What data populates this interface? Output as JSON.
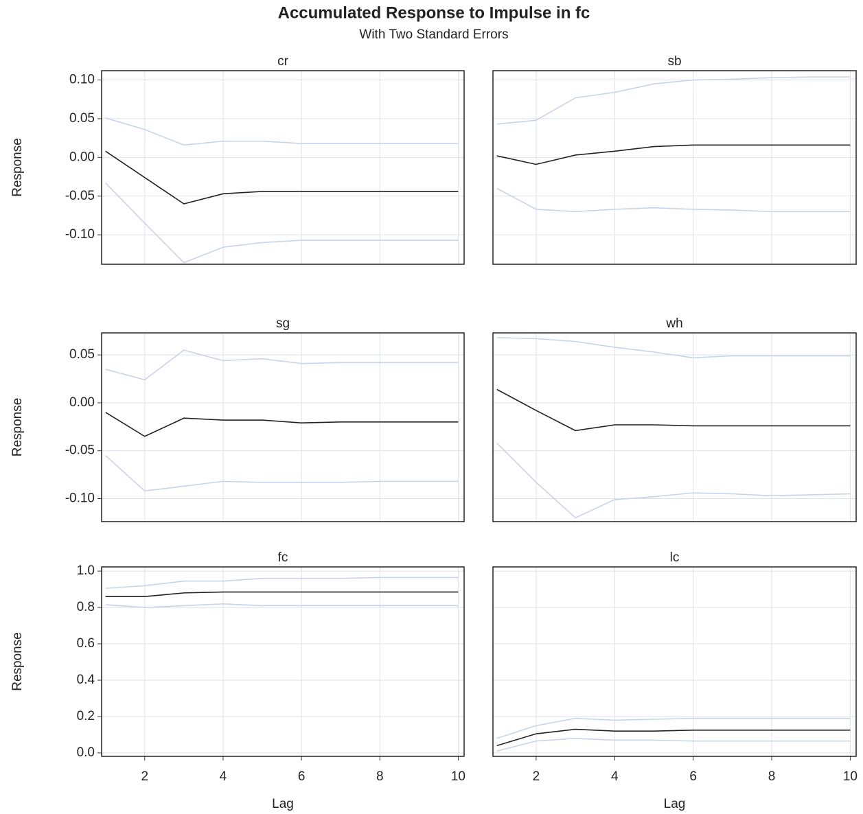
{
  "title": "Accumulated Response to Impulse in fc",
  "subtitle": "With Two Standard Errors",
  "chart_data": [
    {
      "type": "line",
      "title": "cr",
      "ylabel": "Response",
      "grid": true,
      "show_xtick_labels": false,
      "show_ytick_labels": true,
      "x": [
        1,
        2,
        3,
        4,
        5,
        6,
        7,
        8,
        9,
        10
      ],
      "xlim": [
        0.9,
        10.15
      ],
      "xticks": [
        2,
        4,
        6,
        8,
        10
      ],
      "ylim": [
        -0.138,
        0.112
      ],
      "yticks": [
        {
          "value": 0.1,
          "label": "0.10"
        },
        {
          "value": 0.05,
          "label": "0.05"
        },
        {
          "value": 0,
          "label": "0.00"
        },
        {
          "value": -0.05,
          "label": "-0.05"
        },
        {
          "value": -0.1,
          "label": "-0.10"
        }
      ],
      "series": [
        {
          "color": "#c9d3e8",
          "values": [
            0.051,
            0.036,
            0.016,
            0.021,
            0.021,
            0.018,
            0.018,
            0.018,
            0.018,
            0.018
          ]
        },
        {
          "color": "#222222",
          "values": [
            0.008,
            -0.026,
            -0.06,
            -0.047,
            -0.044,
            -0.044,
            -0.044,
            -0.044,
            -0.044,
            -0.044
          ]
        },
        {
          "color": "#c9d3e8",
          "values": [
            -0.033,
            -0.085,
            -0.136,
            -0.116,
            -0.11,
            -0.107,
            -0.107,
            -0.107,
            -0.107,
            -0.107
          ]
        }
      ]
    },
    {
      "type": "line",
      "title": "sb",
      "grid": true,
      "show_xtick_labels": false,
      "show_ytick_labels": false,
      "x": [
        1,
        2,
        3,
        4,
        5,
        6,
        7,
        8,
        9,
        10
      ],
      "xlim": [
        0.9,
        10.15
      ],
      "xticks": [
        2,
        4,
        6,
        8,
        10
      ],
      "ylim": [
        -0.138,
        0.112
      ],
      "yticks": [
        0.1,
        0.05,
        0,
        -0.05,
        -0.1
      ],
      "series": [
        {
          "color": "#c9d3e8",
          "values": [
            0.043,
            0.048,
            0.077,
            0.084,
            0.095,
            0.1,
            0.101,
            0.103,
            0.104,
            0.104
          ]
        },
        {
          "color": "#222222",
          "values": [
            0.002,
            -0.009,
            0.003,
            0.008,
            0.014,
            0.016,
            0.016,
            0.016,
            0.016,
            0.016
          ]
        },
        {
          "color": "#c9d3e8",
          "values": [
            -0.04,
            -0.067,
            -0.07,
            -0.067,
            -0.065,
            -0.067,
            -0.068,
            -0.07,
            -0.07,
            -0.07
          ]
        }
      ]
    },
    {
      "type": "line",
      "title": "sg",
      "ylabel": "Response",
      "grid": true,
      "show_xtick_labels": false,
      "show_ytick_labels": true,
      "x": [
        1,
        2,
        3,
        4,
        5,
        6,
        7,
        8,
        9,
        10
      ],
      "xlim": [
        0.9,
        10.15
      ],
      "xticks": [
        2,
        4,
        6,
        8,
        10
      ],
      "ylim": [
        -0.124,
        0.073
      ],
      "yticks": [
        {
          "value": 0.05,
          "label": "0.05"
        },
        {
          "value": 0,
          "label": "0.00"
        },
        {
          "value": -0.05,
          "label": "-0.05"
        },
        {
          "value": -0.1,
          "label": "-0.10"
        }
      ],
      "series": [
        {
          "color": "#c9d3e8",
          "values": [
            0.035,
            0.024,
            0.055,
            0.044,
            0.046,
            0.041,
            0.042,
            0.042,
            0.042,
            0.042
          ]
        },
        {
          "color": "#222222",
          "values": [
            -0.01,
            -0.035,
            -0.016,
            -0.018,
            -0.018,
            -0.021,
            -0.02,
            -0.02,
            -0.02,
            -0.02
          ]
        },
        {
          "color": "#c9d3e8",
          "values": [
            -0.055,
            -0.092,
            -0.087,
            -0.082,
            -0.083,
            -0.083,
            -0.083,
            -0.082,
            -0.082,
            -0.082
          ]
        }
      ]
    },
    {
      "type": "line",
      "title": "wh",
      "grid": true,
      "show_xtick_labels": false,
      "show_ytick_labels": false,
      "x": [
        1,
        2,
        3,
        4,
        5,
        6,
        7,
        8,
        9,
        10
      ],
      "xlim": [
        0.9,
        10.15
      ],
      "xticks": [
        2,
        4,
        6,
        8,
        10
      ],
      "ylim": [
        -0.124,
        0.073
      ],
      "yticks": [
        0.05,
        0,
        -0.05,
        -0.1
      ],
      "series": [
        {
          "color": "#c9d3e8",
          "values": [
            0.068,
            0.067,
            0.064,
            0.058,
            0.053,
            0.047,
            0.049,
            0.049,
            0.049,
            0.049
          ]
        },
        {
          "color": "#222222",
          "values": [
            0.014,
            -0.008,
            -0.029,
            -0.023,
            -0.023,
            -0.024,
            -0.024,
            -0.024,
            -0.024,
            -0.024
          ]
        },
        {
          "color": "#c9d3e8",
          "values": [
            -0.042,
            -0.083,
            -0.12,
            -0.101,
            -0.098,
            -0.094,
            -0.095,
            -0.097,
            -0.096,
            -0.095
          ]
        }
      ]
    },
    {
      "type": "line",
      "title": "fc",
      "ylabel": "Response",
      "xlabel": "Lag",
      "grid": true,
      "show_xtick_labels": true,
      "show_ytick_labels": true,
      "x": [
        1,
        2,
        3,
        4,
        5,
        6,
        7,
        8,
        9,
        10
      ],
      "xlim": [
        0.9,
        10.15
      ],
      "xticks": [
        2,
        4,
        6,
        8,
        10
      ],
      "ylim": [
        -0.019,
        1.023
      ],
      "yticks": [
        {
          "value": 1.0,
          "label": "1.0"
        },
        {
          "value": 0.8,
          "label": "0.8"
        },
        {
          "value": 0.6,
          "label": "0.6"
        },
        {
          "value": 0.4,
          "label": "0.4"
        },
        {
          "value": 0.2,
          "label": "0.2"
        },
        {
          "value": 0,
          "label": "0.0"
        }
      ],
      "series": [
        {
          "color": "#c9d3e8",
          "values": [
            0.905,
            0.92,
            0.945,
            0.945,
            0.96,
            0.96,
            0.96,
            0.965,
            0.965,
            0.965
          ]
        },
        {
          "color": "#222222",
          "values": [
            0.86,
            0.86,
            0.88,
            0.885,
            0.885,
            0.885,
            0.885,
            0.885,
            0.885,
            0.885
          ]
        },
        {
          "color": "#c9d3e8",
          "values": [
            0.815,
            0.8,
            0.81,
            0.82,
            0.81,
            0.81,
            0.81,
            0.81,
            0.81,
            0.81
          ]
        }
      ]
    },
    {
      "type": "line",
      "title": "lc",
      "xlabel": "Lag",
      "grid": true,
      "show_xtick_labels": true,
      "show_ytick_labels": false,
      "x": [
        1,
        2,
        3,
        4,
        5,
        6,
        7,
        8,
        9,
        10
      ],
      "xlim": [
        0.9,
        10.15
      ],
      "xticks": [
        2,
        4,
        6,
        8,
        10
      ],
      "ylim": [
        -0.019,
        1.023
      ],
      "yticks": [
        1,
        0.8,
        0.6,
        0.4,
        0.2,
        0
      ],
      "series": [
        {
          "color": "#c9d3e8",
          "values": [
            0.08,
            0.15,
            0.19,
            0.18,
            0.185,
            0.19,
            0.19,
            0.19,
            0.19,
            0.19
          ]
        },
        {
          "color": "#222222",
          "values": [
            0.04,
            0.105,
            0.13,
            0.12,
            0.12,
            0.125,
            0.125,
            0.125,
            0.125,
            0.125
          ]
        },
        {
          "color": "#c9d3e8",
          "values": [
            0.01,
            0.065,
            0.08,
            0.07,
            0.07,
            0.065,
            0.065,
            0.065,
            0.065,
            0.065
          ]
        }
      ]
    }
  ]
}
